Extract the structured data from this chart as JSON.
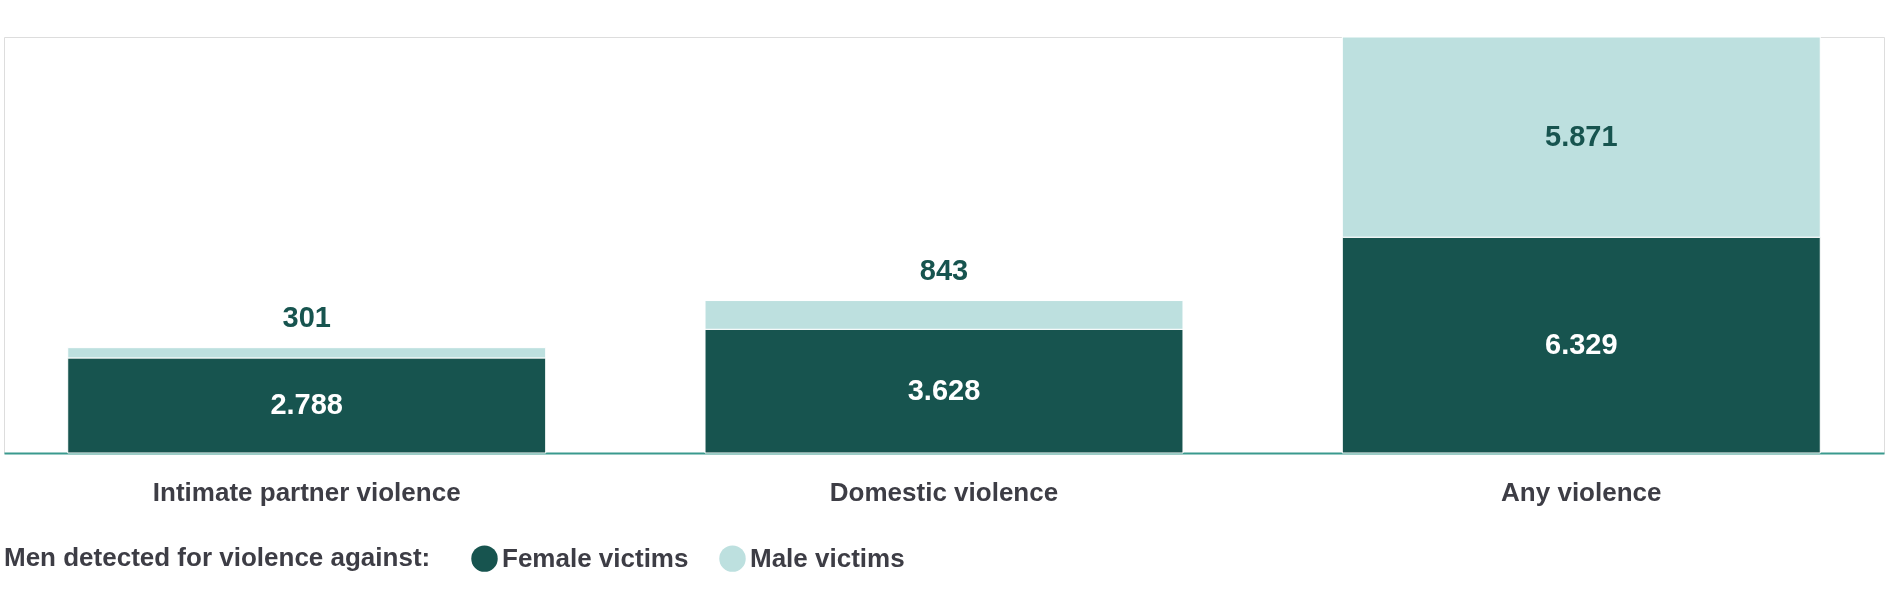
{
  "chart_data": {
    "type": "bar",
    "stacked": true,
    "categories": [
      "Intimate partner violence",
      "Domestic violence",
      "Any violence"
    ],
    "legend_title": "Men detected for violence against:",
    "legend": "bottom",
    "grid": false,
    "tick_labels": "x",
    "series": [
      {
        "name": "Female victims",
        "color": "#17544f",
        "values": [
          2788,
          3628,
          6329
        ],
        "value_labels": [
          "2.788",
          "3.628",
          "6.329"
        ]
      },
      {
        "name": "Male victims",
        "color": "#bde0df",
        "values": [
          301,
          843,
          5871
        ],
        "value_labels": [
          "301",
          "843",
          "5.871"
        ]
      }
    ]
  }
}
